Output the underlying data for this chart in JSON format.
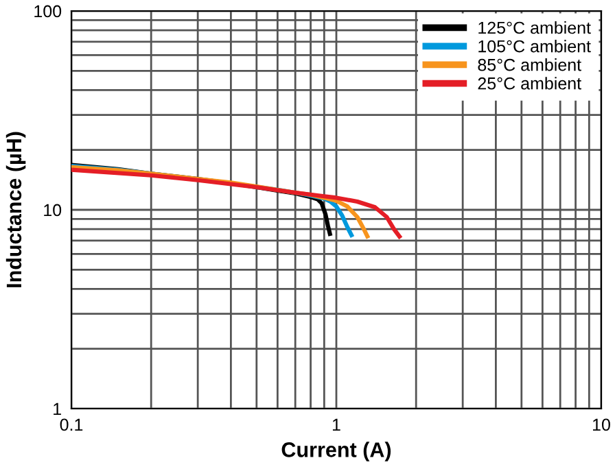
{
  "chart_data": {
    "type": "line",
    "xlabel": "Current (A)",
    "ylabel": "Inductance (µH)",
    "log": "xy",
    "grid": true,
    "legend": "top right",
    "line_style": "solid",
    "marker": "none",
    "xlim": [
      0.1,
      10
    ],
    "ylim": [
      1,
      100
    ],
    "xticks": [
      0.1,
      {
        "value": 0.2,
        "label": null
      },
      {
        "value": 0.3,
        "label": null
      },
      {
        "value": 0.4,
        "label": null
      },
      {
        "value": 0.5,
        "label": null
      },
      {
        "value": 0.6,
        "label": null
      },
      {
        "value": 0.7,
        "label": null
      },
      {
        "value": 0.8,
        "label": null
      },
      {
        "value": 0.9,
        "label": null
      },
      1,
      {
        "value": 2,
        "label": null
      },
      {
        "value": 3,
        "label": null
      },
      {
        "value": 4,
        "label": null
      },
      {
        "value": 5,
        "label": null
      },
      {
        "value": 6,
        "label": null
      },
      {
        "value": 7,
        "label": null
      },
      {
        "value": 8,
        "label": null
      },
      {
        "value": 9,
        "label": null
      },
      10
    ],
    "yticks": [
      1,
      {
        "value": 2,
        "label": null
      },
      {
        "value": 3,
        "label": null
      },
      {
        "value": 4,
        "label": null
      },
      {
        "value": 5,
        "label": null
      },
      {
        "value": 6,
        "label": null
      },
      {
        "value": 7,
        "label": null
      },
      {
        "value": 8,
        "label": null
      },
      {
        "value": 9,
        "label": null
      },
      10,
      {
        "value": 20,
        "label": null
      },
      {
        "value": 30,
        "label": null
      },
      {
        "value": 40,
        "label": null
      },
      {
        "value": 50,
        "label": null
      },
      {
        "value": 60,
        "label": null
      },
      {
        "value": 70,
        "label": null
      },
      {
        "value": 80,
        "label": null
      },
      {
        "value": 90,
        "label": null
      },
      100
    ],
    "series": [
      {
        "name": "125°C ambient",
        "color": "#000000",
        "x": [
          0.1,
          0.15,
          0.2,
          0.3,
          0.4,
          0.5,
          0.6,
          0.7,
          0.8,
          0.85,
          0.88,
          0.91,
          0.93,
          0.95
        ],
        "values": [
          16.8,
          16,
          15.2,
          14.3,
          13.6,
          13,
          12.5,
          12.1,
          11.6,
          11.3,
          10.8,
          9.5,
          8.3,
          7.4
        ]
      },
      {
        "name": "105°C ambient",
        "color": "#0099dd",
        "x": [
          0.1,
          0.15,
          0.2,
          0.4,
          0.6,
          0.7,
          0.8,
          0.9,
          0.95,
          1.0,
          1.05,
          1.1,
          1.15
        ],
        "values": [
          16.6,
          15.9,
          15.2,
          13.6,
          12.6,
          12.2,
          11.8,
          11.4,
          11,
          10.4,
          9.4,
          8.2,
          7.3
        ]
      },
      {
        "name": "85°C ambient",
        "color": "#f7941d",
        "x": [
          0.1,
          0.15,
          0.2,
          0.3,
          0.4,
          0.5,
          0.6,
          0.7,
          0.8,
          0.9,
          1.0,
          1.1,
          1.2,
          1.27,
          1.32
        ],
        "values": [
          16.4,
          15.8,
          15.2,
          14.3,
          13.7,
          13.1,
          12.6,
          12.2,
          11.9,
          11.5,
          11.1,
          10.4,
          9.2,
          8,
          7.2
        ]
      },
      {
        "name": "25°C ambient",
        "color": "#e41e26",
        "x": [
          0.1,
          0.2,
          0.3,
          0.5,
          0.7,
          0.9,
          1.0,
          1.2,
          1.4,
          1.55,
          1.65,
          1.75
        ],
        "values": [
          15.9,
          14.9,
          14.1,
          13,
          12.2,
          11.7,
          11.5,
          11,
          10.3,
          9.2,
          8,
          7.2
        ]
      }
    ]
  }
}
